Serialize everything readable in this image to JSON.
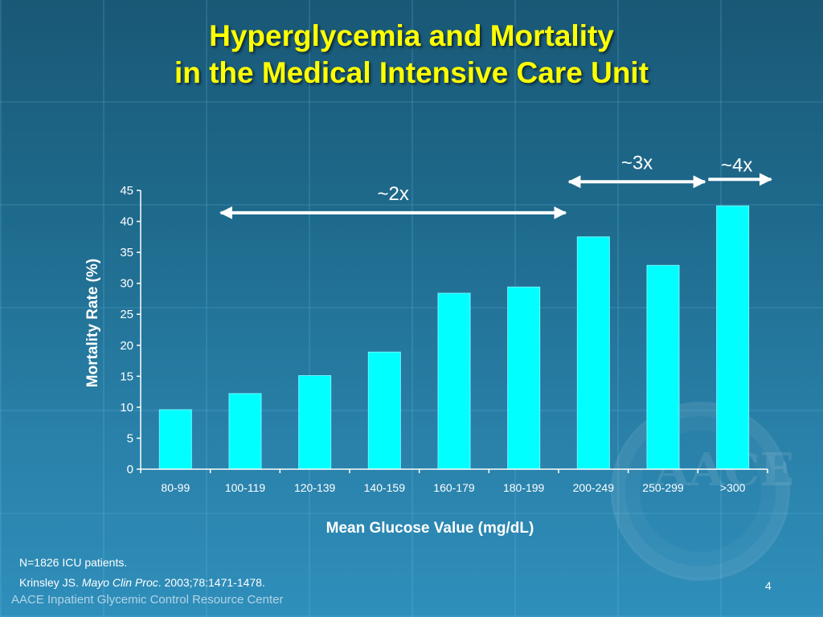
{
  "slide": {
    "title_line1": "Hyperglycemia and Mortality",
    "title_line2": "in the Medical Intensive Care Unit",
    "footnote_line1": "N=1826 ICU patients.",
    "footnote_author": "Krinsley JS. ",
    "footnote_journal": "Mayo Clin Proc",
    "footnote_rest": ". 2003;78:1471-1478.",
    "footer": "AACE Inpatient Glycemic Control Resource Center",
    "page_number": "4",
    "seal_letters": "AACE"
  },
  "chart_data": {
    "type": "bar",
    "title": "",
    "xlabel": "Mean Glucose Value (mg/dL)",
    "ylabel": "Mortality Rate (%)",
    "ylim": [
      0,
      45
    ],
    "yticks": [
      0,
      5,
      10,
      15,
      20,
      25,
      30,
      35,
      40,
      45
    ],
    "categories": [
      "80-99",
      "100-119",
      "120-139",
      "140-159",
      "160-179",
      "180-199",
      "200-249",
      "250-299",
      ">300"
    ],
    "values": [
      9.6,
      12.2,
      15.1,
      18.9,
      28.4,
      29.4,
      37.5,
      32.9,
      42.5
    ],
    "grid": false,
    "bar_color": "#00ffff",
    "annotations": [
      {
        "label": "~2x",
        "from": "100-119",
        "to": "180-199",
        "arrow": "double"
      },
      {
        "label": "~3x",
        "from": "200-249",
        "to": "250-299",
        "arrow": "double"
      },
      {
        "label": "~4x",
        "from": ">300",
        "to": ">300",
        "arrow": "right"
      }
    ]
  }
}
